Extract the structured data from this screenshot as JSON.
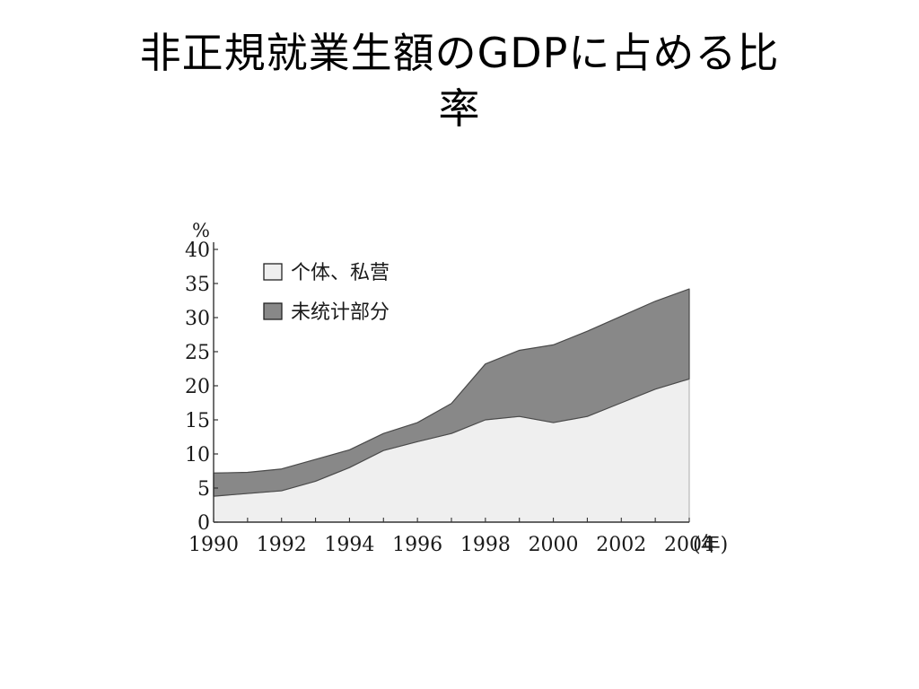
{
  "slide": {
    "title_line1": "非正規就業生額のGDPに占める比",
    "title_line2": "率"
  },
  "chart_data": {
    "type": "area",
    "stacked": true,
    "x": [
      1990,
      1991,
      1992,
      1993,
      1994,
      1995,
      1996,
      1997,
      1998,
      1999,
      2000,
      2001,
      2002,
      2003,
      2004
    ],
    "xticks": [
      "1990",
      "1992",
      "1994",
      "1996",
      "1998",
      "2000",
      "2002",
      "2004"
    ],
    "x_unit_label": "(年)",
    "y_unit_label": "%",
    "ylim": [
      0,
      40
    ],
    "yticks": [
      "0",
      "5",
      "10",
      "15",
      "20",
      "25",
      "30",
      "35",
      "40"
    ],
    "grid": false,
    "legend_position": "top-left",
    "series": [
      {
        "name": "个体、私营",
        "values": [
          3.8,
          4.2,
          4.6,
          6.0,
          8.0,
          10.5,
          11.8,
          13.0,
          15.0,
          15.5,
          14.6,
          15.5,
          17.5,
          19.5,
          21.0
        ],
        "color": "#efefef"
      },
      {
        "name": "未统计部分",
        "values": [
          3.4,
          3.1,
          3.2,
          3.2,
          2.6,
          2.5,
          2.8,
          4.4,
          8.2,
          9.7,
          11.4,
          12.5,
          12.7,
          12.9,
          13.2
        ],
        "color": "#888888"
      }
    ]
  }
}
